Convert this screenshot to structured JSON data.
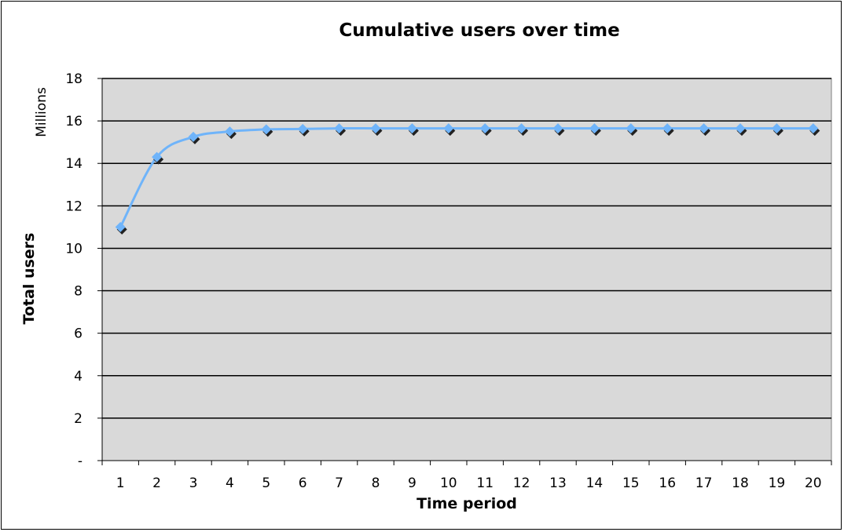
{
  "chart_data": {
    "type": "line",
    "title": "Cumulative users over time",
    "xlabel": "Time period",
    "ylabel": "Total users",
    "units_label": "Millions",
    "x": [
      1,
      2,
      3,
      4,
      5,
      6,
      7,
      8,
      9,
      10,
      11,
      12,
      13,
      14,
      15,
      16,
      17,
      18,
      19,
      20
    ],
    "y_tick_labels": [
      "-",
      "2",
      "4",
      "6",
      "8",
      "10",
      "12",
      "14",
      "16",
      "18"
    ],
    "ylim": [
      0,
      18
    ],
    "grid": true,
    "legend": "none",
    "series": [
      {
        "values": [
          11.0,
          14.3,
          15.25,
          15.5,
          15.6,
          15.62,
          15.65,
          15.65,
          15.65,
          15.65,
          15.65,
          15.65,
          15.65,
          15.65,
          15.65,
          15.65,
          15.65,
          15.65,
          15.65,
          15.65
        ],
        "color": "#6fb4fa"
      }
    ],
    "plot_background": "#d9d9d9",
    "marker_shadow_color": "#222222"
  }
}
